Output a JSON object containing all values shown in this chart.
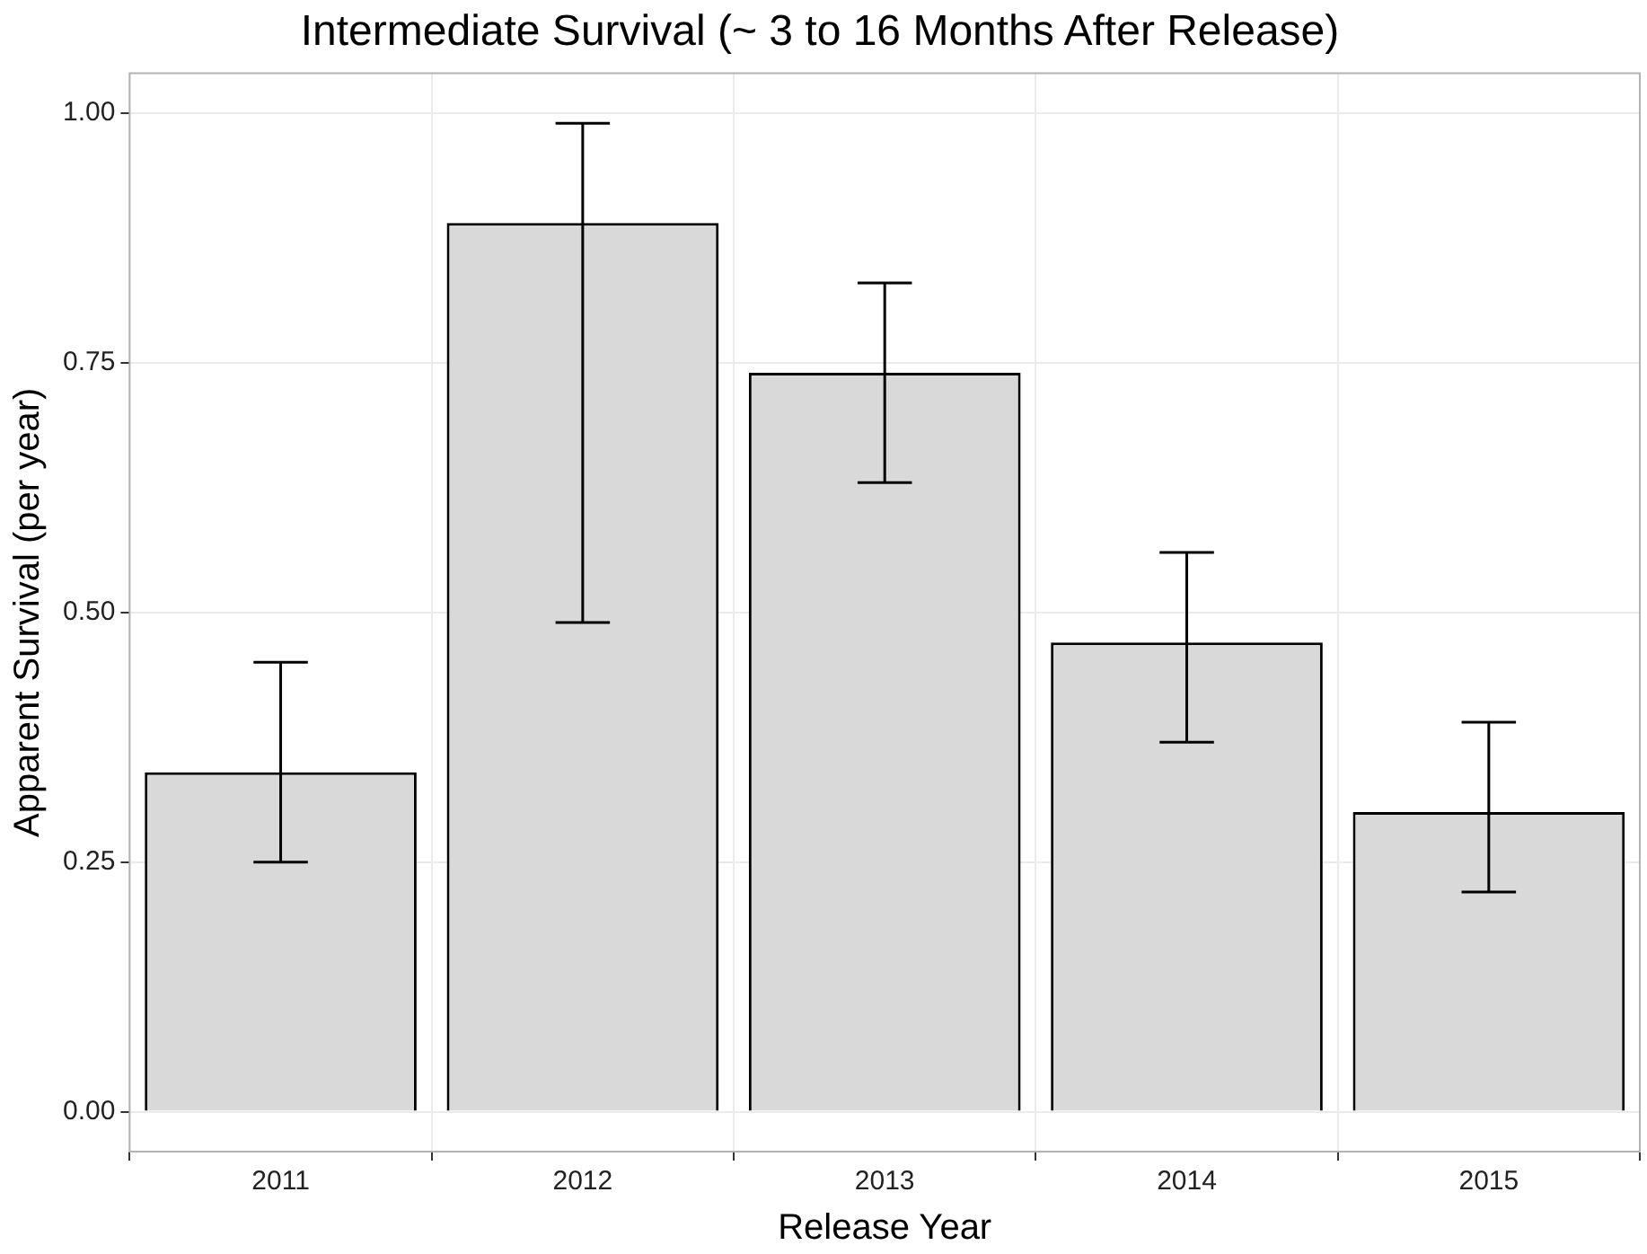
{
  "chart_data": {
    "type": "bar",
    "title": "Intermediate Survival (~ 3 to 16 Months After Release)",
    "xlabel": "Release Year",
    "ylabel": "Apparent Survival (per year)",
    "categories": [
      "2011",
      "2012",
      "2013",
      "2014",
      "2015"
    ],
    "values": [
      0.34,
      0.89,
      0.74,
      0.47,
      0.3
    ],
    "errors": [
      [
        0.25,
        0.45
      ],
      [
        0.49,
        0.99
      ],
      [
        0.63,
        0.83
      ],
      [
        0.37,
        0.56
      ],
      [
        0.22,
        0.39
      ]
    ],
    "color": "#d9d9d9",
    "ylim": [
      -0.04,
      1.04
    ],
    "yticks": [
      {
        "value": 0,
        "label": "0.00"
      },
      {
        "value": 0.25,
        "label": "0.25"
      },
      {
        "value": 0.5,
        "label": "0.50"
      },
      {
        "value": 0.75,
        "label": "0.75"
      },
      {
        "value": 1,
        "label": "1.00"
      }
    ],
    "grid": true,
    "legend": false
  }
}
